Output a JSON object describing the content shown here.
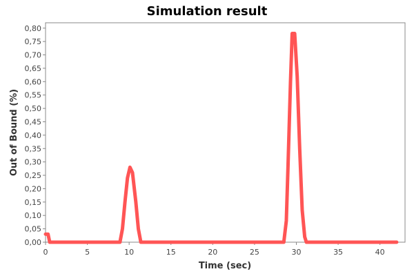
{
  "chart_data": {
    "type": "line",
    "title": "Simulation result",
    "xlabel": "Time (sec)",
    "ylabel": "Out of Bound (%)",
    "xlim": [
      0,
      43
    ],
    "ylim": [
      0,
      0.82
    ],
    "x_ticks": [
      0,
      5,
      10,
      15,
      20,
      25,
      30,
      35,
      40
    ],
    "x_tick_labels": [
      "0",
      "5",
      "10",
      "15",
      "20",
      "25",
      "30",
      "35",
      "40"
    ],
    "y_ticks": [
      0,
      0.05,
      0.1,
      0.15,
      0.2,
      0.25,
      0.3,
      0.35,
      0.4,
      0.45,
      0.5,
      0.55,
      0.6,
      0.65,
      0.7,
      0.75,
      0.8
    ],
    "y_tick_labels": [
      "0,00",
      "0,05",
      "0,10",
      "0,15",
      "0,20",
      "0,25",
      "0,30",
      "0,35",
      "0,40",
      "0,45",
      "0,50",
      "0,55",
      "0,60",
      "0,65",
      "0,70",
      "0,75",
      "0,80"
    ],
    "grid": false,
    "legend": "none",
    "colors": {
      "series": "#ff5555",
      "axis": "#888888",
      "plot_background": "#ffffff"
    },
    "series": [
      {
        "values": [
          [
            0.0,
            0.03
          ],
          [
            0.3,
            0.03
          ],
          [
            0.5,
            0.0
          ],
          [
            8.9,
            0.0
          ],
          [
            9.2,
            0.05
          ],
          [
            9.5,
            0.15
          ],
          [
            9.8,
            0.24
          ],
          [
            10.1,
            0.28
          ],
          [
            10.4,
            0.26
          ],
          [
            10.8,
            0.15
          ],
          [
            11.1,
            0.05
          ],
          [
            11.4,
            0.0
          ],
          [
            28.5,
            0.0
          ],
          [
            28.8,
            0.08
          ],
          [
            29.0,
            0.28
          ],
          [
            29.3,
            0.6
          ],
          [
            29.5,
            0.78
          ],
          [
            29.8,
            0.78
          ],
          [
            30.1,
            0.62
          ],
          [
            30.4,
            0.35
          ],
          [
            30.7,
            0.12
          ],
          [
            31.0,
            0.02
          ],
          [
            31.2,
            0.0
          ],
          [
            42.0,
            0.0
          ]
        ]
      }
    ]
  }
}
